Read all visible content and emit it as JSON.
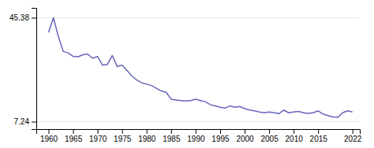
{
  "chart_data": {
    "type": "line",
    "x": [
      1960,
      1961,
      1962,
      1963,
      1964,
      1965,
      1966,
      1967,
      1968,
      1969,
      1970,
      1971,
      1972,
      1973,
      1974,
      1975,
      1976,
      1977,
      1978,
      1979,
      1980,
      1981,
      1982,
      1983,
      1984,
      1985,
      1986,
      1987,
      1988,
      1989,
      1990,
      1991,
      1992,
      1993,
      1994,
      1995,
      1996,
      1997,
      1998,
      1999,
      2000,
      2001,
      2002,
      2003,
      2004,
      2005,
      2006,
      2007,
      2008,
      2009,
      2010,
      2011,
      2012,
      2013,
      2014,
      2015,
      2016,
      2017,
      2018,
      2019,
      2020,
      2021,
      2022
    ],
    "values": [
      40.0,
      45.38,
      38.5,
      33.0,
      32.5,
      31.2,
      31.0,
      31.8,
      32.0,
      30.5,
      31.2,
      28.0,
      28.2,
      31.5,
      27.5,
      28.0,
      26.0,
      24.0,
      22.5,
      21.5,
      21.0,
      20.5,
      19.5,
      18.5,
      18.0,
      15.5,
      15.2,
      15.0,
      14.8,
      15.0,
      15.5,
      15.0,
      14.5,
      13.5,
      13.0,
      12.5,
      12.2,
      13.0,
      12.5,
      12.8,
      12.0,
      11.5,
      11.2,
      10.8,
      10.5,
      10.8,
      10.5,
      10.2,
      11.5,
      10.5,
      10.8,
      11.0,
      10.5,
      10.3,
      10.5,
      11.2,
      10.0,
      9.5,
      9.0,
      8.8,
      10.5,
      11.2,
      10.8
    ],
    "color": "#6666bb",
    "xlim": [
      1957.5,
      2023.5
    ],
    "ylim": [
      4.5,
      49.0
    ],
    "xticks": [
      1960,
      1965,
      1970,
      1975,
      1980,
      1985,
      1990,
      1995,
      2000,
      2005,
      2010,
      2015,
      2022
    ],
    "yticks": [
      7.24,
      45.38
    ],
    "grid": true
  }
}
